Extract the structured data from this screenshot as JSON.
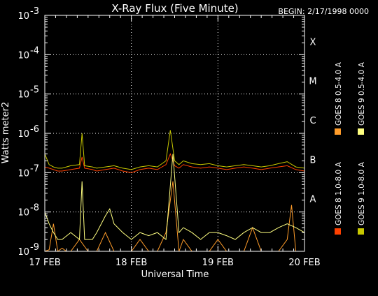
{
  "chart_data": {
    "type": "line",
    "title": "X-Ray Flux (Five Minute)",
    "begin_label": "BEGIN: 2/17/1998 0000",
    "xlabel": "Universal Time",
    "ylabel": "Watts meter2",
    "y_scale": "log",
    "ylim": [
      1e-09,
      0.001
    ],
    "x_tick_labels": [
      "17 FEB",
      "18 FEB",
      "19 FEB",
      "20 FEB"
    ],
    "x_tick_days": [
      0,
      1,
      2,
      3
    ],
    "xlim_days": [
      0,
      3
    ],
    "y_tick_mantissa": "10",
    "y_tick_exponents": [
      "-9",
      "-8",
      "-7",
      "-6",
      "-5",
      "-4",
      "-3"
    ],
    "class_labels": [
      {
        "label": "X",
        "flux": 0.0001
      },
      {
        "label": "M",
        "flux": 1e-05
      },
      {
        "label": "C",
        "flux": 1e-06
      },
      {
        "label": "B",
        "flux": 1e-07
      },
      {
        "label": "A",
        "flux": 1e-08
      }
    ],
    "grid": "dotted",
    "legend_placement": "right",
    "series": [
      {
        "name": "GOES 8 1.0-8.0 A",
        "color": "#ff4000",
        "x_days": [
          0,
          0.05,
          0.1,
          0.15,
          0.2,
          0.3,
          0.4,
          0.43,
          0.46,
          0.55,
          0.6,
          0.7,
          0.8,
          0.9,
          1.0,
          1.1,
          1.2,
          1.3,
          1.4,
          1.45,
          1.5,
          1.55,
          1.6,
          1.7,
          1.8,
          1.9,
          2.0,
          2.1,
          2.2,
          2.3,
          2.4,
          2.5,
          2.6,
          2.7,
          2.8,
          2.9,
          3.0
        ],
        "values": [
          1.4e-07,
          1.3e-07,
          1.2e-07,
          1.1e-07,
          1.1e-07,
          1.2e-07,
          1.3e-07,
          2.5e-07,
          1.3e-07,
          1.2e-07,
          1.1e-07,
          1.2e-07,
          1.3e-07,
          1.1e-07,
          1e-07,
          1.2e-07,
          1.3e-07,
          1.2e-07,
          1.6e-07,
          3e-07,
          1.5e-07,
          1.3e-07,
          1.6e-07,
          1.4e-07,
          1.3e-07,
          1.4e-07,
          1.3e-07,
          1.2e-07,
          1.3e-07,
          1.4e-07,
          1.3e-07,
          1.2e-07,
          1.3e-07,
          1.4e-07,
          1.5e-07,
          1.2e-07,
          1.1e-07
        ]
      },
      {
        "name": "GOES 8 0.5-4.0 A",
        "color": "#ff9c2a",
        "x_days": [
          0,
          0.05,
          0.1,
          0.15,
          0.2,
          0.25,
          0.3,
          0.4,
          0.5,
          0.6,
          0.7,
          0.8,
          0.9,
          1.0,
          1.1,
          1.2,
          1.3,
          1.4,
          1.48,
          1.55,
          1.6,
          1.7,
          1.8,
          1.9,
          2.0,
          2.1,
          2.2,
          2.3,
          2.4,
          2.5,
          2.6,
          2.7,
          2.8,
          2.85,
          2.9,
          3.0
        ],
        "values": [
          1e-09,
          1.1e-09,
          5e-09,
          1e-09,
          1.2e-09,
          1e-09,
          1e-09,
          2e-09,
          1e-09,
          1e-09,
          3e-09,
          1e-09,
          1e-09,
          1e-09,
          2e-09,
          1e-09,
          1e-09,
          3e-09,
          6e-08,
          1e-09,
          2e-09,
          1e-09,
          1e-09,
          1e-09,
          2e-09,
          1e-09,
          1e-09,
          1e-09,
          4e-09,
          1e-09,
          1e-09,
          1e-09,
          2e-09,
          1.5e-08,
          1e-09,
          1e-09
        ]
      },
      {
        "name": "GOES 9 0.5-4.0 A",
        "color": "#ffff80",
        "x_days": [
          0,
          0.05,
          0.1,
          0.15,
          0.2,
          0.3,
          0.4,
          0.43,
          0.46,
          0.55,
          0.6,
          0.7,
          0.75,
          0.8,
          0.9,
          1.0,
          1.1,
          1.2,
          1.3,
          1.4,
          1.48,
          1.55,
          1.6,
          1.7,
          1.8,
          1.9,
          2.0,
          2.1,
          2.2,
          2.3,
          2.4,
          2.5,
          2.6,
          2.7,
          2.8,
          2.9,
          3.0
        ],
        "values": [
          1e-08,
          5e-09,
          3e-09,
          2e-09,
          2e-09,
          3e-09,
          2e-09,
          6e-08,
          2e-09,
          2e-09,
          3e-09,
          8e-09,
          1.2e-08,
          5e-09,
          3e-09,
          2e-09,
          3e-09,
          2.5e-09,
          3e-09,
          2e-09,
          3e-07,
          3e-09,
          4e-09,
          3e-09,
          2e-09,
          3e-09,
          3e-09,
          2.5e-09,
          2e-09,
          3e-09,
          4e-09,
          3e-09,
          3e-09,
          4e-09,
          5e-09,
          4e-09,
          3e-09
        ]
      },
      {
        "name": "GOES 9 1.0-8.0 A",
        "color": "#c8c800",
        "x_days": [
          0,
          0.05,
          0.1,
          0.15,
          0.2,
          0.3,
          0.4,
          0.43,
          0.46,
          0.55,
          0.6,
          0.7,
          0.8,
          0.9,
          1.0,
          1.1,
          1.2,
          1.3,
          1.4,
          1.45,
          1.5,
          1.55,
          1.6,
          1.7,
          1.8,
          1.9,
          2.0,
          2.1,
          2.2,
          2.3,
          2.4,
          2.5,
          2.6,
          2.7,
          2.8,
          2.9,
          3.0
        ],
        "values": [
          3e-07,
          1.6e-07,
          1.4e-07,
          1.3e-07,
          1.3e-07,
          1.5e-07,
          1.6e-07,
          1e-06,
          1.5e-07,
          1.4e-07,
          1.3e-07,
          1.4e-07,
          1.5e-07,
          1.3e-07,
          1.2e-07,
          1.4e-07,
          1.5e-07,
          1.4e-07,
          2e-07,
          1.2e-06,
          2e-07,
          1.6e-07,
          2e-07,
          1.7e-07,
          1.6e-07,
          1.7e-07,
          1.5e-07,
          1.4e-07,
          1.5e-07,
          1.6e-07,
          1.5e-07,
          1.4e-07,
          1.5e-07,
          1.7e-07,
          1.9e-07,
          1.4e-07,
          1.3e-07
        ]
      }
    ]
  }
}
